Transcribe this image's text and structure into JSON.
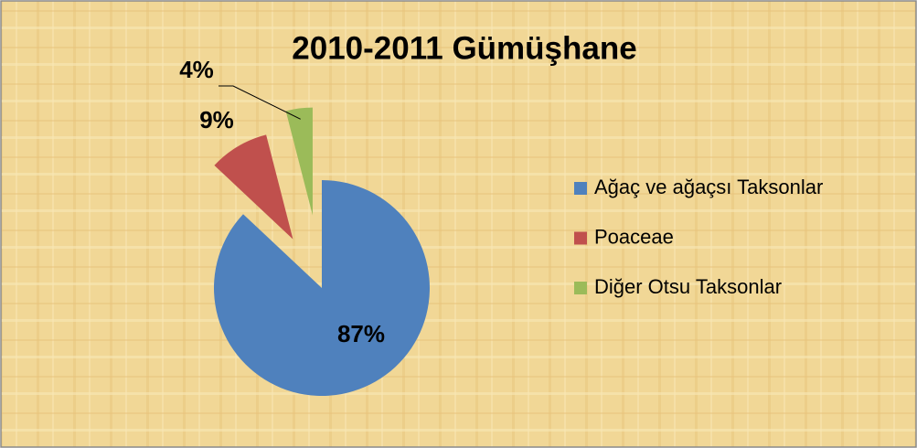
{
  "chart_data": {
    "type": "pie",
    "title": "2010-2011 Gümüşhane",
    "categories": [
      "Ağaç ve ağaçsı Taksonlar",
      "Poaceae",
      "Diğer Otsu Taksonlar"
    ],
    "values": [
      87,
      9,
      4
    ],
    "value_labels": [
      "87%",
      "9%",
      "4%"
    ],
    "colors": [
      "#4f81bd",
      "#c0504d",
      "#9bbb59"
    ],
    "legend": "right"
  }
}
